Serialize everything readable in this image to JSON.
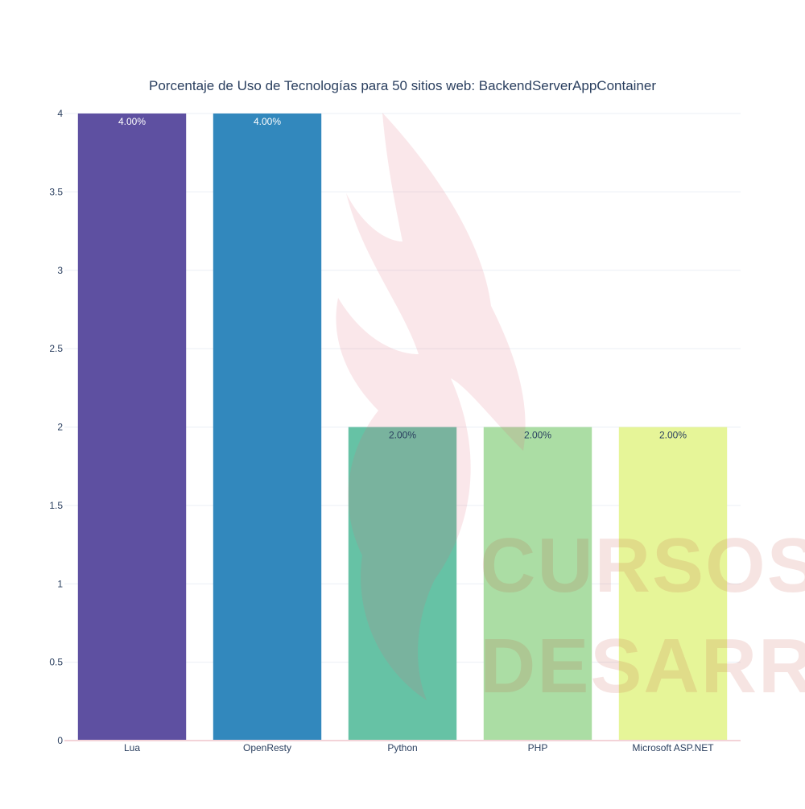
{
  "chart_data": {
    "type": "bar",
    "title": "Porcentaje de Uso de Tecnologías para 50 sitios web: BackendServerAppContainer",
    "xlabel": "",
    "ylabel": "",
    "categories": [
      "Lua",
      "OpenResty",
      "Python",
      "PHP",
      "Microsoft ASP.NET"
    ],
    "values": [
      4,
      4,
      2,
      2,
      2
    ],
    "value_labels": [
      "4.00%",
      "4.00%",
      "2.00%",
      "2.00%",
      "2.00%"
    ],
    "colors": [
      "#5e50a1",
      "#3288bd",
      "#66c2a5",
      "#abdda4",
      "#e6f598"
    ],
    "label_colors": [
      "#ffffff",
      "#ffffff",
      "#2a3f5f",
      "#2a3f5f",
      "#2a3f5f"
    ],
    "ylim": [
      0,
      4
    ],
    "yticks": [
      0,
      0.5,
      1,
      1.5,
      2,
      2.5,
      3,
      3.5,
      4
    ],
    "ytick_labels": [
      "0",
      "0.5",
      "1",
      "1.5",
      "2",
      "2.5",
      "3",
      "3.5",
      "4"
    ],
    "grid": true,
    "legend": false
  },
  "watermark": {
    "line1": "CURSOS DE",
    "line2": "DESARROLLO"
  }
}
